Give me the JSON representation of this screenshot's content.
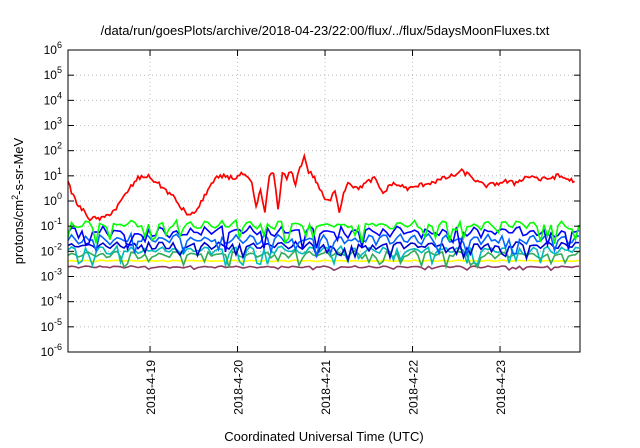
{
  "chart_data": {
    "type": "line",
    "title": "/data/run/goesPlots/archive/2018-04-23/22:00/flux/../flux/5daysMoonFluxes.txt",
    "xlabel": "Coordinated Universal Time (UTC)",
    "ylabel": "protons/cm²-s-sr-MeV",
    "ylabel_parts": {
      "pre": "protons/cm",
      "sup": "2",
      "post": "-s-sr-MeV"
    },
    "yscale": "log",
    "ylim": [
      1e-06,
      1000000.0
    ],
    "y_ticks": [
      {
        "base": "10",
        "exp": "-6"
      },
      {
        "base": "10",
        "exp": "-5"
      },
      {
        "base": "10",
        "exp": "-4"
      },
      {
        "base": "10",
        "exp": "-3"
      },
      {
        "base": "10",
        "exp": "-2"
      },
      {
        "base": "10",
        "exp": "-1"
      },
      {
        "base": "10",
        "exp": "0"
      },
      {
        "base": "10",
        "exp": "1"
      },
      {
        "base": "10",
        "exp": "2"
      },
      {
        "base": "10",
        "exp": "3"
      },
      {
        "base": "10",
        "exp": "4"
      },
      {
        "base": "10",
        "exp": "5"
      },
      {
        "base": "10",
        "exp": "6"
      }
    ],
    "xlim": [
      "2018-04-18 03:00",
      "2018-04-23 22:00"
    ],
    "x_ticks": [
      "2018-4-19",
      "2018-4-20",
      "2018-4-21",
      "2018-4-22",
      "2018-4-23"
    ],
    "grid": true,
    "series": [
      {
        "color": "#ff0000",
        "x": [
          0,
          0.1,
          0.25,
          0.4,
          0.55,
          0.7,
          0.8,
          0.9,
          1.0,
          1.1,
          1.2,
          1.3,
          1.4,
          1.5,
          1.6,
          1.7,
          1.8,
          1.9,
          2.0,
          2.1,
          2.15,
          2.2,
          2.25,
          2.3,
          2.35,
          2.4,
          2.45,
          2.5,
          2.55,
          2.6,
          2.65,
          2.7,
          2.75,
          2.8,
          2.85,
          2.9,
          2.95,
          3.0,
          3.05,
          3.1,
          3.15,
          3.2,
          3.3,
          3.4,
          3.5,
          3.6,
          3.7,
          3.8,
          3.9,
          4.0,
          4.1,
          4.2,
          4.3,
          4.4,
          4.5,
          4.6,
          4.7,
          4.8,
          4.9,
          5.0,
          5.1,
          5.2,
          5.3,
          5.4,
          5.5,
          5.6,
          5.79
        ],
        "values": [
          5,
          0.8,
          0.2,
          0.2,
          0.5,
          3,
          8,
          10,
          6,
          3,
          1.5,
          0.5,
          0.25,
          0.6,
          3,
          8,
          10,
          8,
          12,
          5,
          0.5,
          3,
          0.3,
          10,
          15,
          0.4,
          12,
          8,
          15,
          5,
          20,
          60,
          15,
          10,
          5,
          2,
          1,
          1,
          3,
          0.4,
          2,
          6,
          3,
          5,
          8,
          2,
          5,
          4,
          3,
          4,
          5,
          6,
          8,
          10,
          15,
          10,
          5,
          4,
          5,
          6,
          5,
          8,
          10,
          7,
          8,
          10,
          6
        ]
      },
      {
        "color": "#00ff00",
        "base": 0.11,
        "amp": 0.55,
        "period": 0.17,
        "dip": true
      },
      {
        "color": "#0000ff",
        "base": 0.06,
        "amp": 0.7,
        "period": 0.17,
        "dip": true
      },
      {
        "color": "#0066ff",
        "base": 0.03,
        "amp": 0.6,
        "period": 0.17,
        "dip": true
      },
      {
        "color": "#0000cc",
        "base": 0.017,
        "amp": 0.45,
        "period": 0.17,
        "dip": true
      },
      {
        "color": "#00bbbb",
        "base": 0.011,
        "amp": 0.5,
        "period": 0.17,
        "dip": true
      },
      {
        "color": "#33aa55",
        "base": 0.0075,
        "amp": 0.45,
        "period": 0.17,
        "dip": true
      },
      {
        "color": "#ffff00",
        "base": 0.0042,
        "amp": 0.08,
        "period": 0.17,
        "dip": false
      },
      {
        "color": "#8b3a62",
        "base": 0.0024,
        "amp": 0.12,
        "period": 0.17,
        "dip": true
      }
    ]
  }
}
